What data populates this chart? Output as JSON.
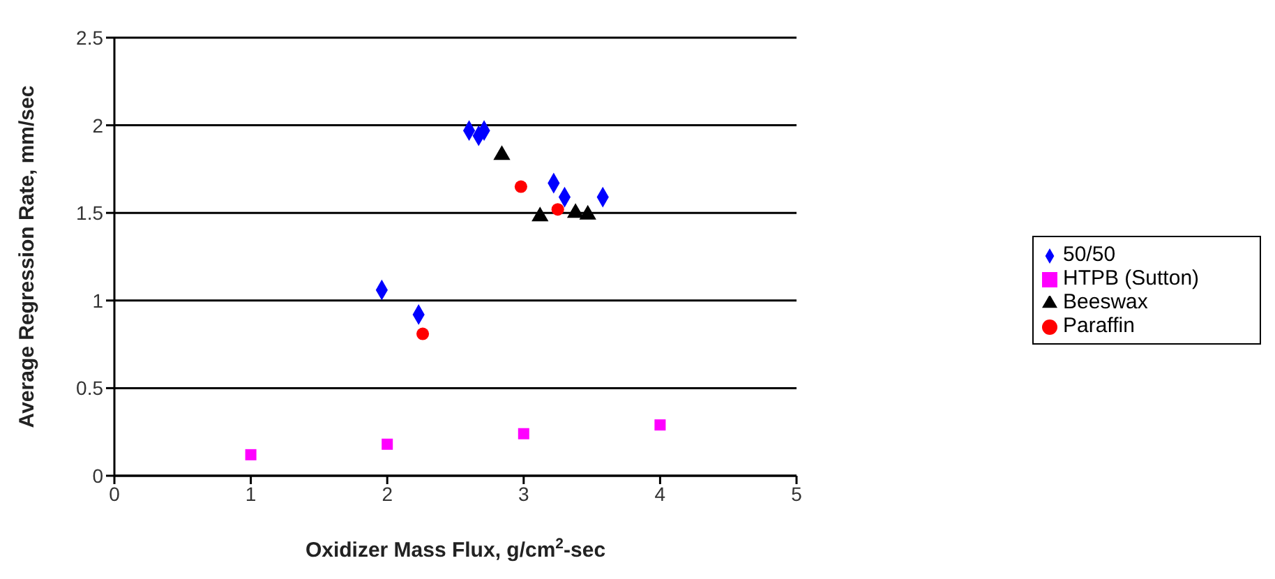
{
  "chart_data": {
    "type": "scatter",
    "xlabel": "Oxidizer Mass Flux, g/cm$^{2}$-sec",
    "ylabel": "Average Regression Rate, mm/sec",
    "xlim": [
      0,
      5
    ],
    "xticks": [
      0,
      1,
      2,
      3,
      4,
      5
    ],
    "ylim": [
      0,
      2.5
    ],
    "yticks": [
      0,
      0.5,
      1,
      1.5,
      2,
      2.5
    ],
    "grid": "y",
    "legend": "right",
    "series": [
      {
        "name": "50/50",
        "color": "#0000ff",
        "marker": "diamond",
        "x": [
          1.96,
          2.23,
          2.6,
          2.67,
          2.71,
          3.22,
          3.3,
          3.58
        ],
        "values": [
          1.06,
          0.92,
          1.97,
          1.94,
          1.97,
          1.67,
          1.59,
          1.59
        ]
      },
      {
        "name": "HTPB (Sutton)",
        "color": "#ff00ff",
        "marker": "square",
        "x": [
          1,
          2,
          3,
          4
        ],
        "values": [
          0.12,
          0.18,
          0.24,
          0.29
        ]
      },
      {
        "name": "Beeswax",
        "color": "#000000",
        "marker": "triangle",
        "x": [
          2.84,
          3.12,
          3.38,
          3.47
        ],
        "values": [
          1.83,
          1.48,
          1.5,
          1.49
        ]
      },
      {
        "name": "Paraffin",
        "color": "#ff0000",
        "marker": "circle",
        "x": [
          2.26,
          2.98,
          3.25
        ],
        "values": [
          0.81,
          1.65,
          1.52
        ]
      }
    ]
  }
}
